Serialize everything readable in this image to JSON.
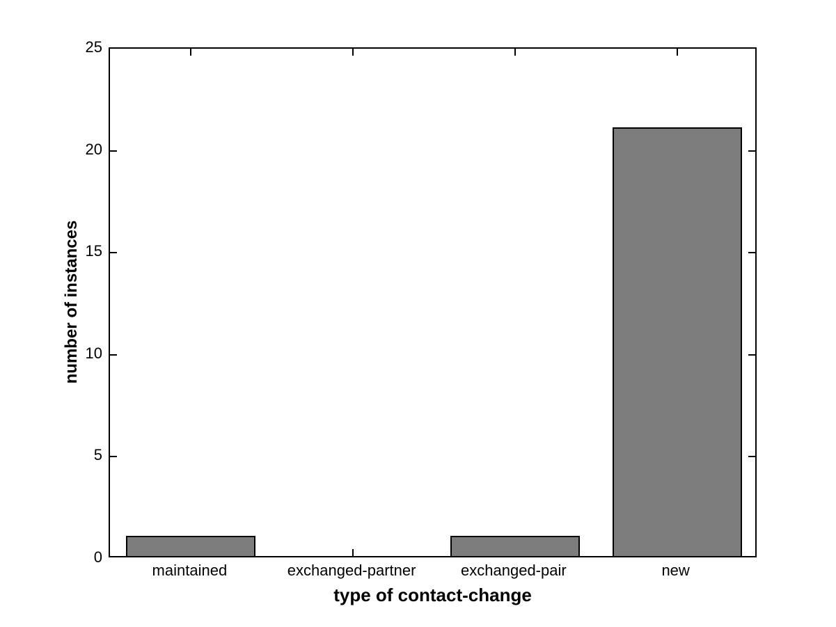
{
  "chart_data": {
    "type": "bar",
    "title": "",
    "categories": [
      "maintained",
      "exchanged-partner",
      "exchanged-pair",
      "new"
    ],
    "values": [
      1,
      0,
      1,
      21
    ],
    "xlabel": "type of contact-change",
    "ylabel": "number of instances",
    "ylim": [
      0,
      25
    ],
    "yticks": [
      0,
      5,
      10,
      15,
      20,
      25
    ],
    "ytick_labels": [
      "0",
      "5",
      "10",
      "15",
      "20",
      "25"
    ],
    "bar_width_fraction": 0.8,
    "bar_fill_color": "#7d7d7d",
    "bar_edge_color": "#000000",
    "axis_color": "#000000",
    "background_color": "#ffffff",
    "grid": false,
    "legend": "none",
    "box": true
  }
}
